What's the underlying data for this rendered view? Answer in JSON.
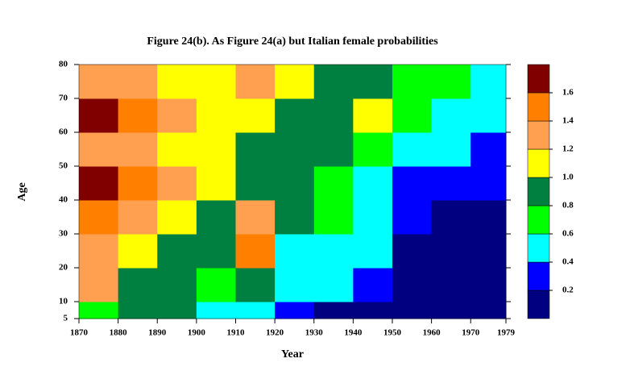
{
  "chart_data": {
    "type": "heatmap",
    "title": "Figure 24(b). As Figure 24(a) but Italian female probabilities",
    "x_label": "Year",
    "y_label": "Age",
    "xbins": [
      1870,
      1880,
      1890,
      1900,
      1910,
      1920,
      1930,
      1940,
      1950,
      1960,
      1970,
      1979
    ],
    "ybins": [
      5,
      10,
      20,
      30,
      40,
      50,
      60,
      70,
      80
    ],
    "z": [
      [
        0.7,
        0.9,
        0.9,
        0.5,
        0.4,
        0.3,
        0.1,
        0.1,
        0.1,
        0.1,
        0.1
      ],
      [
        1.3,
        0.9,
        0.9,
        0.7,
        0.9,
        0.4,
        0.5,
        0.3,
        0.1,
        0.1,
        0.1
      ],
      [
        1.3,
        1.1,
        0.9,
        0.9,
        1.4,
        0.5,
        0.5,
        0.5,
        0.1,
        0.1,
        0.1
      ],
      [
        1.5,
        1.3,
        1.1,
        0.9,
        1.3,
        0.9,
        0.7,
        0.5,
        0.3,
        0.1,
        0.1
      ],
      [
        1.7,
        1.5,
        1.3,
        1.1,
        0.9,
        0.9,
        0.7,
        0.5,
        0.3,
        0.3,
        0.3
      ],
      [
        1.3,
        1.3,
        1.1,
        1.1,
        0.9,
        0.9,
        0.9,
        0.7,
        0.5,
        0.5,
        0.3
      ],
      [
        1.7,
        1.5,
        1.3,
        1.1,
        1.1,
        0.9,
        0.9,
        1.1,
        0.7,
        0.5,
        0.5
      ],
      [
        1.3,
        1.3,
        1.1,
        1.1,
        1.3,
        1.1,
        0.9,
        0.9,
        0.7,
        0.7,
        0.5
      ]
    ],
    "xlim": [
      1870,
      1979
    ],
    "ylim": [
      5,
      80
    ],
    "xticks": [
      1870,
      1880,
      1890,
      1900,
      1910,
      1920,
      1930,
      1940,
      1950,
      1960,
      1970,
      1979
    ],
    "yticks": [
      5,
      10,
      20,
      30,
      40,
      50,
      60,
      70,
      80
    ],
    "colorbar_lim": [
      0,
      1.8
    ],
    "levels": [
      0.2,
      0.4,
      0.6,
      0.8,
      1.0,
      1.2,
      1.4,
      1.6
    ],
    "colors": [
      "#000080",
      "#0000ff",
      "#00ffff",
      "#00ff00",
      "#008040",
      "#ffff00",
      "#ffa050",
      "#ff8000",
      "#800000"
    ]
  }
}
